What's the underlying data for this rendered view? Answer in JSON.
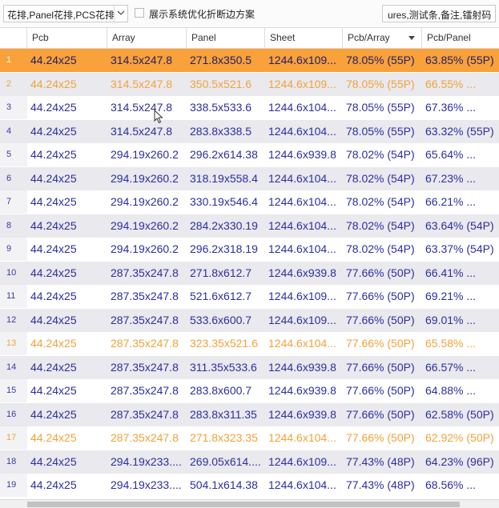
{
  "toolbar": {
    "combo_value": "花排,Panel花排,PCS花排",
    "checkbox_label": "展示系统优化折断边方案",
    "field_value": "ures,测试条,备注,镭射码"
  },
  "columns": [
    "Pcb",
    "Array",
    "Panel",
    "Sheet",
    "Pcb/Array",
    "Pcb/Panel"
  ],
  "rows": [
    {
      "n": "1",
      "cells": [
        "44.24x25",
        "314.5x247.8",
        "271.8x350.5",
        "1244.6x109...",
        "78.05% (55P)",
        "63.85% (55P)"
      ]
    },
    {
      "n": "2",
      "cells": [
        "44.24x25",
        "314.5x247.8",
        "350.5x521.6",
        "1244.6x109...",
        "78.05% (55P)",
        "66.55% ..."
      ]
    },
    {
      "n": "3",
      "cells": [
        "44.24x25",
        "314.5x247.8",
        "338.5x533.6",
        "1244.6x104...",
        "78.05% (55P)",
        "67.36% ..."
      ]
    },
    {
      "n": "4",
      "cells": [
        "44.24x25",
        "314.5x247.8",
        "283.8x338.5",
        "1244.6x104...",
        "78.05% (55P)",
        "63.32% (55P)"
      ]
    },
    {
      "n": "5",
      "cells": [
        "44.24x25",
        "294.19x260.2",
        "296.2x614.38",
        "1244.6x939.8",
        "78.02% (54P)",
        "65.64% ..."
      ]
    },
    {
      "n": "6",
      "cells": [
        "44.24x25",
        "294.19x260.2",
        "318.19x558.4",
        "1244.6x104...",
        "78.02% (54P)",
        "67.23% ..."
      ]
    },
    {
      "n": "7",
      "cells": [
        "44.24x25",
        "294.19x260.2",
        "330.19x546.4",
        "1244.6x104...",
        "78.02% (54P)",
        "66.21% ..."
      ]
    },
    {
      "n": "8",
      "cells": [
        "44.24x25",
        "294.19x260.2",
        "284.2x330.19",
        "1244.6x104...",
        "78.02% (54P)",
        "63.64% (54P)"
      ]
    },
    {
      "n": "9",
      "cells": [
        "44.24x25",
        "294.19x260.2",
        "296.2x318.19",
        "1244.6x104...",
        "78.02% (54P)",
        "63.37% (54P)"
      ]
    },
    {
      "n": "10",
      "cells": [
        "44.24x25",
        "287.35x247.8",
        "271.8x612.7",
        "1244.6x939.8",
        "77.66% (50P)",
        "66.41% ..."
      ]
    },
    {
      "n": "11",
      "cells": [
        "44.24x25",
        "287.35x247.8",
        "521.6x612.7",
        "1244.6x109...",
        "77.66% (50P)",
        "69.21% ..."
      ]
    },
    {
      "n": "12",
      "cells": [
        "44.24x25",
        "287.35x247.8",
        "533.6x600.7",
        "1244.6x109...",
        "77.66% (50P)",
        "69.01% ..."
      ]
    },
    {
      "n": "13",
      "cells": [
        "44.24x25",
        "287.35x247.8",
        "323.35x521.6",
        "1244.6x104...",
        "77.66% (50P)",
        "65.58% ..."
      ]
    },
    {
      "n": "14",
      "cells": [
        "44.24x25",
        "287.35x247.8",
        "311.35x533.6",
        "1244.6x939.8",
        "77.66% (50P)",
        "66.57% ..."
      ]
    },
    {
      "n": "15",
      "cells": [
        "44.24x25",
        "287.35x247.8",
        "283.8x600.7",
        "1244.6x939.8",
        "77.66% (50P)",
        "64.88% ..."
      ]
    },
    {
      "n": "16",
      "cells": [
        "44.24x25",
        "287.35x247.8",
        "283.8x311.35",
        "1244.6x939.8",
        "77.66% (50P)",
        "62.58% (50P)"
      ]
    },
    {
      "n": "17",
      "cells": [
        "44.24x25",
        "287.35x247.8",
        "271.8x323.35",
        "1244.6x104...",
        "77.66% (50P)",
        "62.92% (50P)"
      ]
    },
    {
      "n": "18",
      "cells": [
        "44.24x25",
        "294.19x233....",
        "269.05x614....",
        "1244.6x109...",
        "77.43% (48P)",
        "64.23% (96P)"
      ]
    },
    {
      "n": "19",
      "cells": [
        "44.24x25",
        "294.19x233....",
        "504.1x614.38",
        "1244.6x104...",
        "77.43% (48P)",
        "68.56% ..."
      ]
    }
  ],
  "colors": {
    "selected_row": "#f9a13a",
    "highlight_text": "#f2a23a",
    "normal_text": "#2b2fa0",
    "alt_row": "#e9e9ee"
  },
  "icons": {
    "combo_arrow": "chevron-down-icon",
    "sort": "sort-desc-icon",
    "cursor": "mouse-cursor-icon"
  }
}
